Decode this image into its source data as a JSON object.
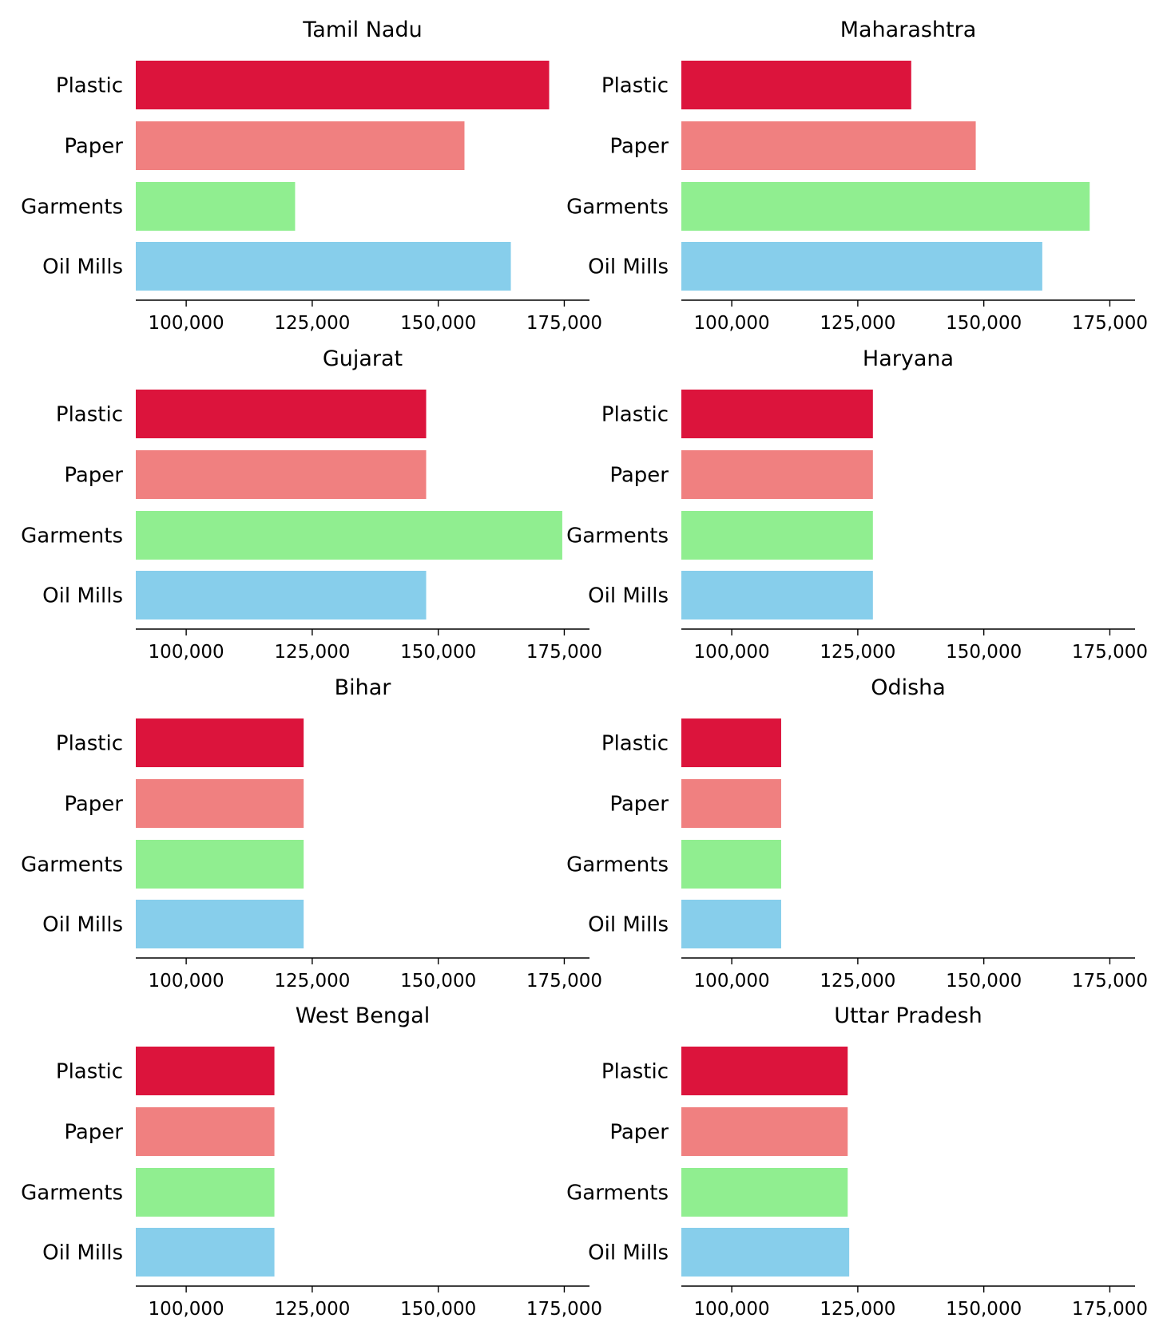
{
  "chart_data": [
    {
      "type": "bar",
      "orientation": "horizontal",
      "title": "Tamil Nadu",
      "categories": [
        "Plastic",
        "Paper",
        "Garments",
        "Oil Mills"
      ],
      "values": [
        172000,
        155200,
        121600,
        164400
      ],
      "xlim": [
        90000,
        180000
      ],
      "xticks": [
        100000,
        125000,
        150000,
        175000
      ],
      "xtick_labels": [
        "100,000",
        "125,000",
        "150,000",
        "175,000"
      ]
    },
    {
      "type": "bar",
      "orientation": "horizontal",
      "title": "Maharashtra",
      "categories": [
        "Plastic",
        "Paper",
        "Garments",
        "Oil Mills"
      ],
      "values": [
        135600,
        148400,
        171000,
        161600
      ],
      "xlim": [
        90000,
        180000
      ],
      "xticks": [
        100000,
        125000,
        150000,
        175000
      ],
      "xtick_labels": [
        "100,000",
        "125,000",
        "150,000",
        "175,000"
      ]
    },
    {
      "type": "bar",
      "orientation": "horizontal",
      "title": "Gujarat",
      "categories": [
        "Plastic",
        "Paper",
        "Garments",
        "Oil Mills"
      ],
      "values": [
        147600,
        147600,
        174600,
        147600
      ],
      "xlim": [
        90000,
        180000
      ],
      "xticks": [
        100000,
        125000,
        150000,
        175000
      ],
      "xtick_labels": [
        "100,000",
        "125,000",
        "150,000",
        "175,000"
      ]
    },
    {
      "type": "bar",
      "orientation": "horizontal",
      "title": "Haryana",
      "categories": [
        "Plastic",
        "Paper",
        "Garments",
        "Oil Mills"
      ],
      "values": [
        128000,
        128000,
        128000,
        128000
      ],
      "xlim": [
        90000,
        180000
      ],
      "xticks": [
        100000,
        125000,
        150000,
        175000
      ],
      "xtick_labels": [
        "100,000",
        "125,000",
        "150,000",
        "175,000"
      ]
    },
    {
      "type": "bar",
      "orientation": "horizontal",
      "title": "Bihar",
      "categories": [
        "Plastic",
        "Paper",
        "Garments",
        "Oil Mills"
      ],
      "values": [
        123300,
        123300,
        123300,
        123300
      ],
      "xlim": [
        90000,
        180000
      ],
      "xticks": [
        100000,
        125000,
        150000,
        175000
      ],
      "xtick_labels": [
        "100,000",
        "125,000",
        "150,000",
        "175,000"
      ]
    },
    {
      "type": "bar",
      "orientation": "horizontal",
      "title": "Odisha",
      "categories": [
        "Plastic",
        "Paper",
        "Garments",
        "Oil Mills"
      ],
      "values": [
        109800,
        109800,
        109800,
        109800
      ],
      "xlim": [
        90000,
        180000
      ],
      "xticks": [
        100000,
        125000,
        150000,
        175000
      ],
      "xtick_labels": [
        "100,000",
        "125,000",
        "150,000",
        "175,000"
      ]
    },
    {
      "type": "bar",
      "orientation": "horizontal",
      "title": "West Bengal",
      "categories": [
        "Plastic",
        "Paper",
        "Garments",
        "Oil Mills"
      ],
      "values": [
        117500,
        117500,
        117500,
        117500
      ],
      "xlim": [
        90000,
        180000
      ],
      "xticks": [
        100000,
        125000,
        150000,
        175000
      ],
      "xtick_labels": [
        "100,000",
        "125,000",
        "150,000",
        "175,000"
      ]
    },
    {
      "type": "bar",
      "orientation": "horizontal",
      "title": "Uttar Pradesh",
      "categories": [
        "Plastic",
        "Paper",
        "Garments",
        "Oil Mills"
      ],
      "values": [
        123000,
        123000,
        123000,
        123300
      ],
      "xlim": [
        90000,
        180000
      ],
      "xticks": [
        100000,
        125000,
        150000,
        175000
      ],
      "xtick_labels": [
        "100,000",
        "125,000",
        "150,000",
        "175,000"
      ]
    }
  ],
  "colors": {
    "Plastic": "#dc143c",
    "Paper": "#f08080",
    "Garments": "#90ee90",
    "Oil Mills": "#87ceeb"
  },
  "layout": {
    "grid": "4x2",
    "gridlines": false,
    "legend": "none"
  }
}
